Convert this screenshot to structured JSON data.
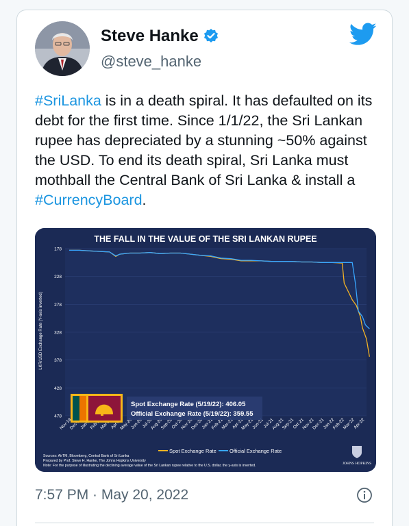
{
  "author": {
    "display_name": "Steve Hanke",
    "handle": "@steve_hanke",
    "verified": true
  },
  "tweet": {
    "hashtag_1": "#SriLanka",
    "text_1": " is in a death spiral. It has defaulted on its debt for the first time. Since 1/1/22, the Sri Lankan rupee has depreciated by a stunning ~50% against the USD. To end its death spiral, Sri Lanka must mothball the Central Bank of Sri Lanka & install a ",
    "hashtag_2": "#CurrencyBoard",
    "text_2": ".",
    "timestamp": "7:57 PM · May 20, 2022"
  },
  "colors": {
    "link": "#1b95e0",
    "chart_bg": "#1b2a55",
    "spot_line": "#f5b324",
    "official_line": "#38a6ff",
    "verified": "#1d9bf0"
  },
  "icons": {
    "verified": "verified-badge-icon",
    "logo": "twitter-bird-icon",
    "info": "info-icon"
  },
  "chart_data": {
    "type": "line",
    "title": "THE FALL IN THE VALUE OF THE SRI LANKAN RUPEE",
    "ylabel": "LKR/USD Exchange Rate (Y-axis inverted)",
    "y_ticks": [
      "178",
      "228",
      "278",
      "328",
      "378",
      "428",
      "478"
    ],
    "ylim": [
      478,
      178
    ],
    "x_ticks": [
      "Nov-19",
      "Dec-19",
      "Jan-20",
      "Feb-20",
      "Mar-20",
      "Apr-20",
      "May-20",
      "Jun-20",
      "Jul-20",
      "Aug-20",
      "Sep-20",
      "Oct-20",
      "Nov-20",
      "Dec-20",
      "Jan-21",
      "Feb-21",
      "Mar-21",
      "Apr-21",
      "May-21",
      "Jun-21",
      "Jul-21",
      "Aug-21",
      "Sep-21",
      "Oct-21",
      "Nov-21",
      "Dec-21",
      "Jan-22",
      "Feb-22",
      "Mar-22",
      "Apr-22"
    ],
    "series": [
      {
        "name": "Spot Exchange Rate",
        "x": [
          0,
          1,
          2,
          3,
          4,
          4.6,
          5,
          6,
          7,
          8,
          9,
          10,
          11,
          12,
          13,
          14,
          15,
          16,
          17,
          18,
          19,
          20,
          21,
          22,
          23,
          24,
          25,
          26,
          27,
          27.2,
          27.6,
          28,
          28.4,
          28.8,
          29,
          29.4,
          29.7
        ],
        "y": [
          181,
          181,
          182,
          183,
          184,
          192,
          188,
          186,
          186,
          185,
          187,
          186,
          186,
          188,
          190,
          192,
          196,
          197,
          200,
          200,
          200,
          201,
          201,
          201,
          202,
          202,
          203,
          203,
          204,
          240,
          255,
          270,
          280,
          300,
          320,
          340,
          372
        ]
      },
      {
        "name": "Official Exchange Rate",
        "x": [
          0,
          1,
          2,
          3,
          4,
          4.6,
          5,
          6,
          7,
          8,
          9,
          10,
          11,
          12,
          13,
          14,
          15,
          16,
          17,
          18,
          19,
          20,
          21,
          22,
          23,
          24,
          25,
          26,
          27,
          27.5,
          28,
          28.3,
          28.6,
          29,
          29.3,
          29.7
        ],
        "y": [
          181,
          181,
          182,
          183,
          184,
          191,
          188,
          186,
          186,
          185,
          187,
          186,
          186,
          188,
          190,
          191,
          195,
          196,
          199,
          199,
          200,
          201,
          201,
          201,
          202,
          202,
          203,
          203,
          203,
          203,
          203,
          240,
          290,
          300,
          315,
          322
        ]
      }
    ],
    "annotations": {
      "spot": "Spot Exchange Rate (5/19/22): 406.05",
      "official": "Official Exchange Rate (5/19/22): 359.55"
    },
    "legend": {
      "placement": "bottom",
      "spot": "Spot Exchange Rate",
      "official": "Official Exchange Rate"
    },
    "sources": "Sources: AirTM, Bloomberg, Central Bank of Sri Lanka",
    "prepared": "Prepared by Prof. Steve H. Hanke, The Johns Hopkins University",
    "note": "Note: For the purpose of illustrating the declining average value of the Sri Lankan rupee relative to the U.S. dollar, the y-axis is inverted.",
    "institution": "JOHNS HOPKINS"
  }
}
